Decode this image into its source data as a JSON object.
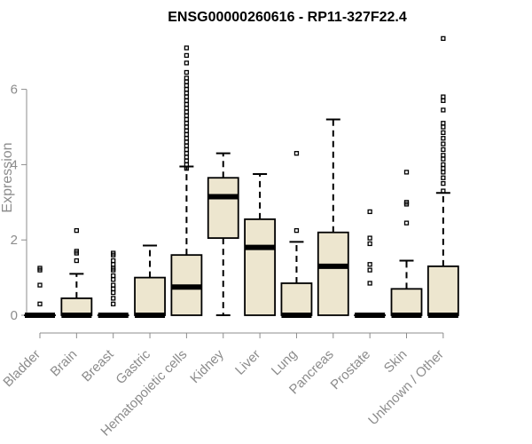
{
  "chart_data": {
    "type": "boxplot",
    "title": "ENSG00000260616 - RP11-327F22.4",
    "xlabel": "",
    "ylabel": "Expression",
    "ylim": [
      0,
      7.4
    ],
    "yticks": [
      0,
      2,
      4,
      6
    ],
    "grid": false,
    "categories": [
      "Bladder",
      "Brain",
      "Breast",
      "Gastric",
      "Hematopoietic cells",
      "Kidney",
      "Liver",
      "Lung",
      "Pancreas",
      "Prostate",
      "Skin",
      "Unknown / Other"
    ],
    "boxes": [
      {
        "category": "Bladder",
        "min": 0,
        "q1": 0,
        "median": 0,
        "q3": 0,
        "max": 0,
        "outliers": [
          1.25,
          1.2,
          0.8,
          0.3
        ]
      },
      {
        "category": "Brain",
        "min": 0,
        "q1": 0,
        "median": 0,
        "q3": 0.45,
        "max": 1.1,
        "outliers": [
          2.25,
          1.7,
          1.65,
          1.45
        ]
      },
      {
        "category": "Breast",
        "min": 0,
        "q1": 0,
        "median": 0,
        "q3": 0,
        "max": 0,
        "outliers": [
          1.65,
          1.6,
          1.45,
          1.35,
          1.25,
          1.2,
          1.05,
          0.95,
          0.8,
          0.7,
          0.6,
          0.45,
          0.3
        ]
      },
      {
        "category": "Gastric",
        "min": 0,
        "q1": 0,
        "median": 0,
        "q3": 1.0,
        "max": 1.85,
        "outliers": []
      },
      {
        "category": "Hematopoietic cells",
        "min": 0,
        "q1": 0,
        "median": 0.75,
        "q3": 1.6,
        "max": 3.95,
        "outliers": [
          7.1,
          6.9,
          6.7,
          6.45,
          6.3,
          6.2,
          6.1,
          6.0,
          5.9,
          5.8,
          5.7,
          5.6,
          5.5,
          5.4,
          5.3,
          5.2,
          5.1,
          5.0,
          4.9,
          4.8,
          4.7,
          4.6,
          4.5,
          4.4,
          4.3,
          4.2,
          4.1,
          4.0,
          3.9
        ]
      },
      {
        "category": "Kidney",
        "min": 0,
        "q1": 2.05,
        "median": 3.15,
        "q3": 3.65,
        "max": 4.3,
        "outliers": []
      },
      {
        "category": "Liver",
        "min": 0,
        "q1": 0,
        "median": 1.8,
        "q3": 2.55,
        "max": 3.75,
        "outliers": []
      },
      {
        "category": "Lung",
        "min": 0,
        "q1": 0,
        "median": 0,
        "q3": 0.85,
        "max": 1.95,
        "outliers": [
          4.3,
          2.25
        ]
      },
      {
        "category": "Pancreas",
        "min": 0,
        "q1": 0,
        "median": 1.3,
        "q3": 2.2,
        "max": 5.2,
        "outliers": []
      },
      {
        "category": "Prostate",
        "min": 0,
        "q1": 0,
        "median": 0,
        "q3": 0,
        "max": 0,
        "outliers": [
          2.75,
          2.05,
          1.9,
          1.35,
          1.2,
          0.85
        ]
      },
      {
        "category": "Skin",
        "min": 0,
        "q1": 0,
        "median": 0,
        "q3": 0.7,
        "max": 1.45,
        "outliers": [
          3.8,
          3.0,
          2.95,
          2.45
        ]
      },
      {
        "category": "Unknown / Other",
        "min": 0,
        "q1": 0,
        "median": 0,
        "q3": 1.3,
        "max": 3.25,
        "outliers": [
          7.35,
          5.8,
          5.7,
          5.45,
          5.1,
          5.0,
          4.85,
          4.7,
          4.55,
          4.4,
          4.25,
          4.15,
          4.0,
          3.9,
          3.8,
          3.65,
          3.5,
          3.3
        ]
      }
    ],
    "colors": {
      "box_fill": "#ede6cf",
      "stroke": "#000000",
      "axis": "#8c8c8c"
    }
  }
}
